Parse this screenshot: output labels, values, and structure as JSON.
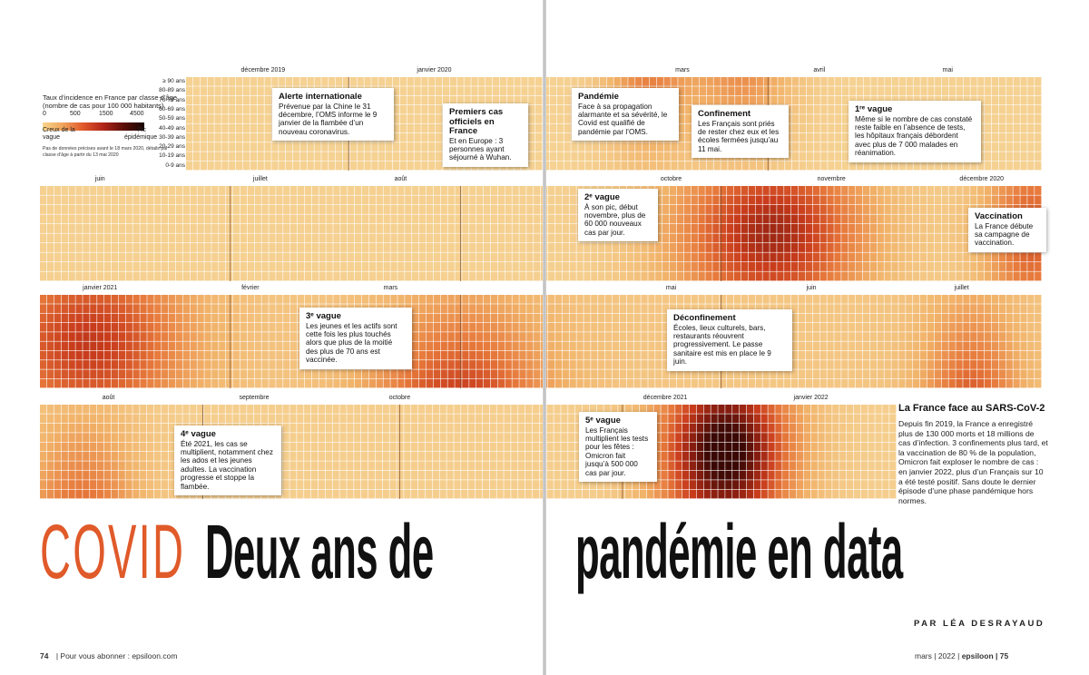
{
  "legend": {
    "title": "Taux d’incidence en France par classe d’âge (nombre de cas pour 100 000 habitants)",
    "ticks": [
      "0",
      "500",
      "1500",
      "4500"
    ],
    "low_label": "Creux de la vague",
    "high_label": "Pic épidémique",
    "note": "Pas de données précises avant le 18 mars 2020, détails par classe d’âge à partir du 13 mai 2020"
  },
  "age_classes": [
    "≥ 90 ans",
    "80-89 ans",
    "70-79 ans",
    "60-69 ans",
    "50-59 ans",
    "40-49 ans",
    "30-39 ans",
    "20-29 ans",
    "10-19 ans",
    "0-9 ans"
  ],
  "colors": {
    "accent": "#e05a2a",
    "low": "#f8d48c",
    "high": "#1a0404",
    "grid_line": "#ffffff"
  },
  "chart_data": {
    "type": "heatmap",
    "title": "Taux d’incidence en France par classe d’âge",
    "y_categories": [
      "≥ 90 ans",
      "80-89 ans",
      "70-79 ans",
      "60-69 ans",
      "50-59 ans",
      "40-49 ans",
      "30-39 ans",
      "20-29 ans",
      "10-19 ans",
      "0-9 ans"
    ],
    "scale_ticks": [
      0,
      500,
      1500,
      4500
    ],
    "rows": [
      {
        "months": [
          "décembre 2019",
          "janvier 2020",
          "mars",
          "avril",
          "mai"
        ],
        "peaks": [
          {
            "center": 0.54,
            "width": 0.05,
            "intensity": 0.4,
            "ages": "old"
          },
          {
            "center": 0.65,
            "width": 0.06,
            "intensity": 0.35,
            "ages": "old"
          }
        ],
        "base": 0.04
      },
      {
        "months": [
          "juin",
          "juillet",
          "août",
          "octobre",
          "novembre",
          "décembre 2020"
        ],
        "peaks": [
          {
            "center": 0.73,
            "width": 0.1,
            "intensity": 0.75,
            "ages": "all"
          },
          {
            "center": 0.99,
            "width": 0.05,
            "intensity": 0.55,
            "ages": "all"
          }
        ],
        "base": 0.05
      },
      {
        "months": [
          "janvier 2021",
          "février",
          "mars",
          "mai",
          "juin",
          "juillet"
        ],
        "peaks": [
          {
            "center": 0.05,
            "width": 0.1,
            "intensity": 0.6,
            "ages": "all"
          },
          {
            "center": 0.42,
            "width": 0.09,
            "intensity": 0.55,
            "ages": "young"
          },
          {
            "center": 0.93,
            "width": 0.05,
            "intensity": 0.45,
            "ages": "young"
          }
        ],
        "base": 0.12
      },
      {
        "months": [
          "août",
          "septembre",
          "octobre",
          "décembre 2021",
          "janvier 2022"
        ],
        "peaks": [
          {
            "center": 0.05,
            "width": 0.07,
            "intensity": 0.45,
            "ages": "young"
          },
          {
            "center": 0.8,
            "width": 0.08,
            "intensity": 1.0,
            "ages": "all"
          }
        ],
        "base": 0.06
      }
    ]
  },
  "callouts": {
    "alerte": {
      "title": "Alerte internationale",
      "body": "Prévenue par la Chine le 31 décembre, l’OMS informe le 9 janvier de la flambée d’un nouveau coronavirus."
    },
    "premiers": {
      "title": "Premiers cas officiels en France",
      "body": "Et en Europe : 3 personnes ayant séjourné à Wuhan."
    },
    "pandemie": {
      "title": "Pandémie",
      "body": "Face à sa propagation alarmante et sa sévérité, le Covid est qualifié de pandémie par l’OMS."
    },
    "confinement": {
      "title": "Confinement",
      "body": "Les Français sont priés de rester chez eux et les écoles fermées jusqu’au 11 mai."
    },
    "vague1": {
      "title": "1ʳᵉ vague",
      "body": "Même si le nombre de cas constaté reste faible en l’absence de tests, les hôpitaux français débordent avec plus de 7 000 malades en réanimation."
    },
    "vague2": {
      "title": "2ᵉ vague",
      "body": "À son pic, début novembre, plus de 60 000 nouveaux cas par jour."
    },
    "vaccination": {
      "title": "Vaccination",
      "body": "La France débute sa campagne de vaccination."
    },
    "vague3": {
      "title": "3ᵉ vague",
      "body": "Les jeunes et les actifs sont cette fois les plus touchés alors que plus de la moitié des plus de 70 ans est vaccinée."
    },
    "deconfinement": {
      "title": "Déconfinement",
      "body": "Écoles, lieux culturels, bars, restaurants réouvrent progressivement. Le passe sanitaire est mis en place le 9 juin."
    },
    "vague4": {
      "title": "4ᵉ vague",
      "body": "Été 2021, les cas se multiplient, notamment chez les ados et les jeunes adultes. La vaccination progresse et stoppe la flambée."
    },
    "vague5": {
      "title": "5ᵉ vague",
      "body": "Les Français multiplient les tests pour les fêtes : Omicron fait jusqu’à 500 000 cas par jour."
    }
  },
  "sidebar": {
    "title": "La France face au SARS-CoV-2",
    "body": "Depuis fin 2019, la France a enregistré plus de 130 000 morts et 18 millions de cas d’infection. 3 confinements plus tard, et la vaccination de 80 % de la population, Omicron fait exploser le nombre de cas : en janvier 2022, plus d’un Français sur 10 a été testé positif. Sans doute le dernier épisode d’une phase pandémique hors normes."
  },
  "headline": {
    "covid": "COVID",
    "part1": "Deux ans de",
    "part2": "pandémie en data"
  },
  "byline": "PAR LÉA DESRAYAUD",
  "folio": {
    "left_page": "74",
    "left_text": "| Pour vous abonner : epsiloon.com",
    "right_text": "mars | 2022 |",
    "brand": "epsiloon",
    "right_page": "| 75"
  }
}
